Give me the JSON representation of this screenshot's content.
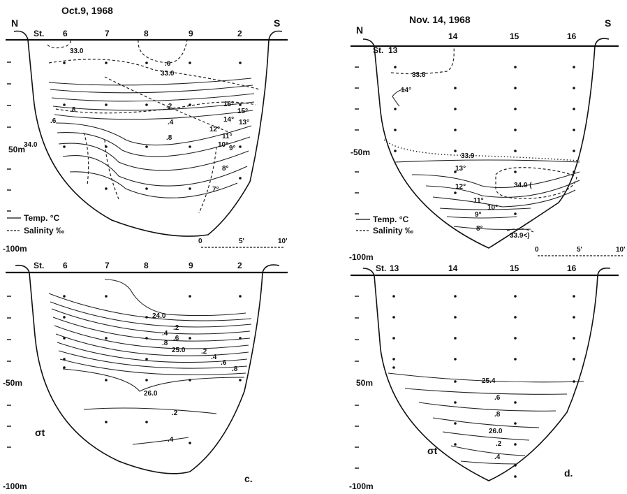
{
  "panels": [
    {
      "id": "a",
      "title": "Oct.9, 1968",
      "north": "N",
      "south": "S",
      "station_prefix": "St.",
      "stations": [
        "6",
        "7",
        "8",
        "9",
        "2"
      ],
      "depth_50": "50m",
      "depth_100": "-100m",
      "legend": {
        "temp": "Temp. °C",
        "salinity": "Salinity ‰"
      },
      "scale": [
        "0",
        "5'",
        "10'"
      ],
      "temp_labels": [
        "16°",
        "15°",
        "14°",
        "13°",
        "12°",
        "11°",
        "10°",
        "9°",
        "8°",
        "7°"
      ],
      "sal_labels": [
        "33.0",
        "33.0",
        ".6",
        ".2",
        ".8",
        ".4",
        ".6",
        ".8",
        "34.0"
      ]
    },
    {
      "id": "b",
      "title": "Nov. 14, 1968",
      "north": "N",
      "south": "S",
      "station_prefix": "St.",
      "stations": [
        "13",
        "14",
        "15",
        "16"
      ],
      "depth_50": "-50m",
      "depth_100": "-100m",
      "legend": {
        "temp": "Temp. °C",
        "salinity": "Salinity ‰"
      },
      "scale": [
        "0",
        "5'",
        "10'"
      ],
      "temp_labels": [
        "14°",
        "13°",
        "12°",
        "11°",
        "10°",
        "9°",
        "8°"
      ],
      "sal_labels": [
        "33.8",
        "33.9",
        "34.0 (",
        "33.9<)"
      ]
    },
    {
      "id": "c",
      "stations_prefix": "St.",
      "stations": [
        "6",
        "7",
        "8",
        "9",
        "2"
      ],
      "depth_50": "-50m",
      "depth_100": "-100m",
      "sigma_label": "σt",
      "panel_letter": "c.",
      "sigma_labels": [
        "24.0",
        ".2",
        ".4",
        ".6",
        ".8",
        "25.0",
        ".2",
        ".4",
        ".6",
        ".8",
        "26.0",
        ".2",
        ".4"
      ]
    },
    {
      "id": "d",
      "stations_prefix": "St.",
      "stations": [
        "13",
        "14",
        "15",
        "16"
      ],
      "depth_50": "50m",
      "depth_100": "-100m",
      "sigma_label": "σt",
      "panel_letter": "d.",
      "sigma_labels": [
        "25.4",
        ".6",
        ".8",
        "26.0",
        ".2",
        ".4"
      ]
    }
  ]
}
